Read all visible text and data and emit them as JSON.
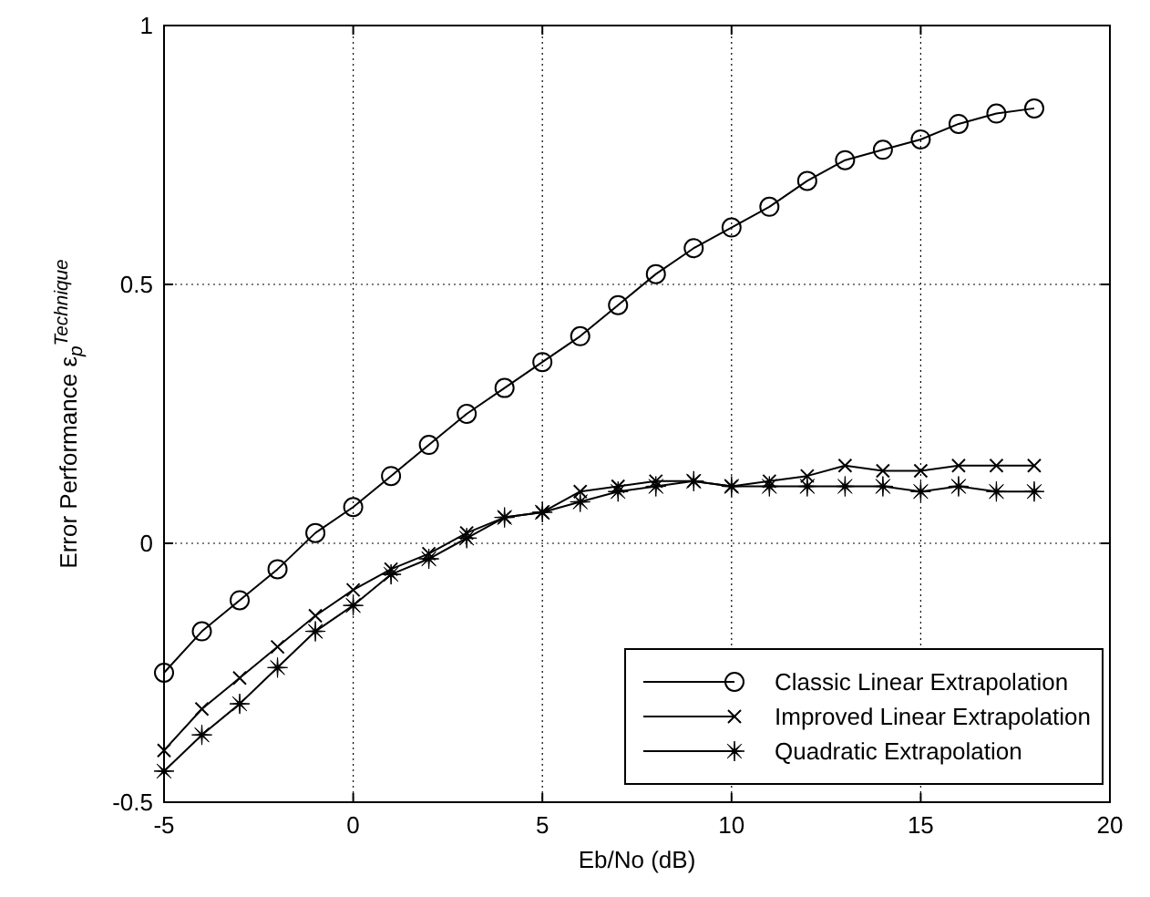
{
  "chart_data": {
    "type": "line",
    "xlabel": "Eb/No (dB)",
    "ylabel": "Error Performance ε$_{p}$$^{Technique}$",
    "x": [
      -5,
      -4,
      -3,
      -2,
      -1,
      0,
      1,
      2,
      3,
      4,
      5,
      6,
      7,
      8,
      9,
      10,
      11,
      12,
      13,
      14,
      15,
      16,
      17,
      18
    ],
    "series": [
      {
        "name": "Classic Linear Extrapolation",
        "color": "#000000",
        "marker": "circle",
        "values": [
          -0.25,
          -0.17,
          -0.11,
          -0.05,
          0.02,
          0.07,
          0.13,
          0.19,
          0.25,
          0.3,
          0.35,
          0.4,
          0.46,
          0.52,
          0.57,
          0.61,
          0.65,
          0.7,
          0.74,
          0.76,
          0.78,
          0.81,
          0.83,
          0.84
        ]
      },
      {
        "name": "Improved Linear Extrapolation",
        "color": "#000000",
        "marker": "cross",
        "values": [
          -0.4,
          -0.32,
          -0.26,
          -0.2,
          -0.14,
          -0.09,
          -0.05,
          -0.02,
          0.02,
          0.05,
          0.06,
          0.1,
          0.11,
          0.12,
          0.12,
          0.11,
          0.12,
          0.13,
          0.15,
          0.14,
          0.14,
          0.15,
          0.15,
          0.15
        ]
      },
      {
        "name": "Quadratic Extrapolation",
        "color": "#000000",
        "marker": "star",
        "values": [
          -0.44,
          -0.37,
          -0.31,
          -0.24,
          -0.17,
          -0.12,
          -0.06,
          -0.03,
          0.01,
          0.05,
          0.06,
          0.08,
          0.1,
          0.11,
          0.12,
          0.11,
          0.11,
          0.11,
          0.11,
          0.11,
          0.1,
          0.11,
          0.1,
          0.1
        ]
      }
    ],
    "xlim": [
      -5,
      20
    ],
    "xticks": [
      -5,
      0,
      5,
      10,
      15,
      20
    ],
    "ylim": [
      -0.5,
      1
    ],
    "yticks": [
      -0.5,
      0,
      0.5,
      1
    ],
    "grid": true,
    "legend": "bottom right",
    "line_style": "solid"
  }
}
